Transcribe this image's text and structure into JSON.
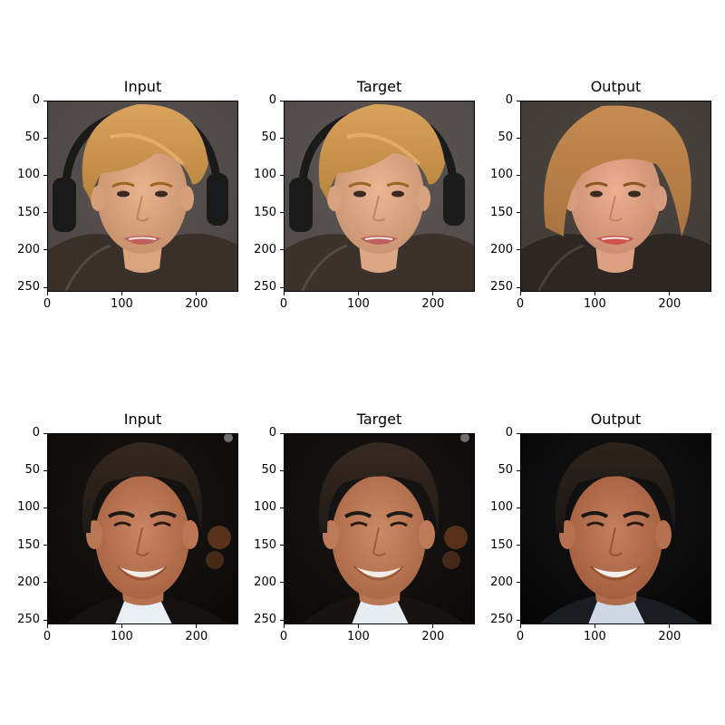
{
  "panels": [
    {
      "title": "Input",
      "subject": "blond-man-headphones",
      "colors": {
        "bg": "#4a4542",
        "hair": "#b8853e",
        "hair_light": "#d9a35e",
        "skin": "#e9b390",
        "lips": "#c0605c",
        "jacket": "#3a302a",
        "headphones": "#1a1a1a"
      }
    },
    {
      "title": "Target",
      "subject": "blond-man-headphones",
      "colors": {
        "bg": "#4e4946",
        "hair": "#b8853e",
        "hair_light": "#d7a25c",
        "skin": "#ebb694",
        "lips": "#c0605c",
        "jacket": "#3c322c",
        "headphones": "#1a1a1a"
      }
    },
    {
      "title": "Output",
      "subject": "blond-man-generated",
      "colors": {
        "bg": "#3f3833",
        "hair": "#a8733f",
        "hair_light": "#c48c52",
        "skin": "#eab091",
        "lips": "#d0504e",
        "jacket": "#2e2622",
        "headphones": "#2e2622"
      }
    },
    {
      "title": "Input",
      "subject": "dark-haired-man-smiling",
      "colors": {
        "bg": "#0a0807",
        "hair": "#1e1915",
        "hair_light": "#35291f",
        "skin": "#c98564",
        "lips": "#f1ece6",
        "jacket": "#141210",
        "shirt": "#e8eef4",
        "bokeh": "#8a4a24"
      }
    },
    {
      "title": "Target",
      "subject": "dark-haired-man-smiling",
      "colors": {
        "bg": "#0b0908",
        "hair": "#201a16",
        "hair_light": "#372a20",
        "skin": "#cc8a68",
        "lips": "#f1ece6",
        "jacket": "#161310",
        "shirt": "#e6ecf2",
        "bokeh": "#86461f"
      }
    },
    {
      "title": "Output",
      "subject": "dark-haired-man-generated",
      "colors": {
        "bg": "#060505",
        "hair": "#1a1613",
        "hair_light": "#2c231c",
        "skin": "#c4805f",
        "lips": "#f4f0ec",
        "jacket": "#1a1c22",
        "shirt": "#cfd8e4",
        "bokeh": "#060505"
      }
    }
  ],
  "axes": {
    "y_ticks": [
      0,
      50,
      100,
      150,
      200,
      250
    ],
    "x_ticks": [
      0,
      100,
      200
    ],
    "extent": [
      0,
      256
    ],
    "tick_color": "#000000"
  }
}
